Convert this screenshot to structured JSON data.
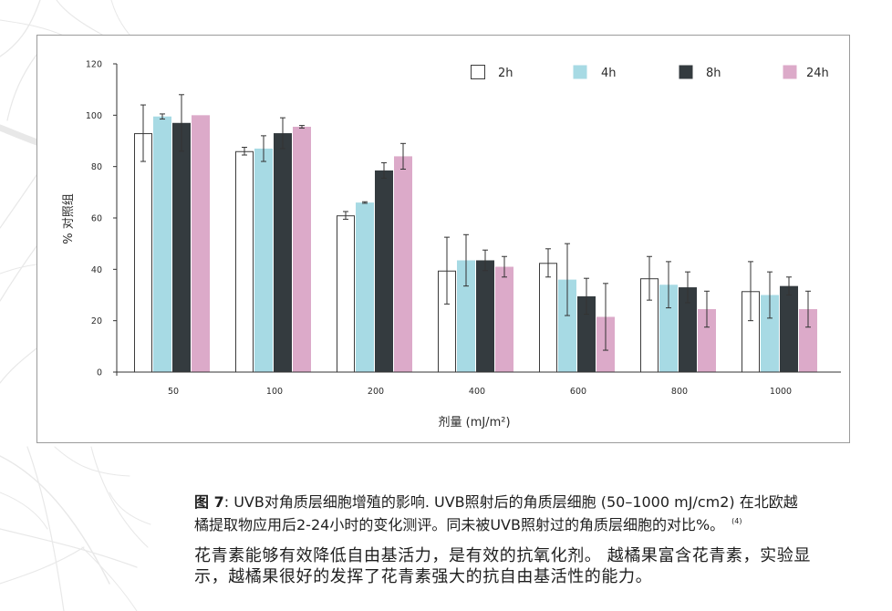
{
  "chart_data": {
    "type": "bar",
    "categories": [
      "50",
      "100",
      "200",
      "400",
      "600",
      "800",
      "1000"
    ],
    "series": [
      {
        "name": "2h",
        "color": "#ffffff",
        "values": [
          93,
          86,
          61,
          39.5,
          42.5,
          36.5,
          31.5
        ],
        "errors": [
          11,
          1.5,
          1.5,
          13,
          5.5,
          8.5,
          11.5
        ]
      },
      {
        "name": "4h",
        "color": "#a7dae4",
        "values": [
          99.5,
          87,
          66,
          43.5,
          36,
          34,
          30
        ],
        "errors": [
          1,
          5,
          0.3,
          10,
          14,
          9,
          9
        ]
      },
      {
        "name": "8h",
        "color": "#343b3f",
        "values": [
          97,
          93,
          78.5,
          43.5,
          29.5,
          33,
          33.5
        ],
        "errors": [
          11,
          6,
          3,
          4,
          7,
          6,
          3.5
        ]
      },
      {
        "name": "24h",
        "color": "#dcaac9",
        "values": [
          100,
          95.5,
          84,
          41,
          21.5,
          24.5,
          24.5
        ],
        "errors": [
          0,
          0.5,
          5,
          4,
          13,
          7,
          7
        ]
      }
    ],
    "xlabel": "剂量 (mJ/m²)",
    "ylabel": "% 对照组",
    "ylim": [
      0,
      120
    ],
    "yticks": [
      0,
      20,
      40,
      60,
      80,
      100,
      120
    ],
    "legend": "top-right",
    "grid": false
  },
  "caption": {
    "label": "图 7",
    "text": ": UVB对角质层细胞增殖的影响. UVB照射后的角质层细胞 (50–1000 mJ/cm2) 在北欧越橘提取物应用后2-24小时的变化测评。同未被UVB照射过的角质层细胞的对比%。",
    "reference": "(4)"
  },
  "body": {
    "paragraph": "花青素能够有效降低自由基活力，是有效的抗氧化剂。 越橘果富含花青素，实验显示，越橘果很好的发挥了花青素强大的抗自由基活性的能力。"
  }
}
